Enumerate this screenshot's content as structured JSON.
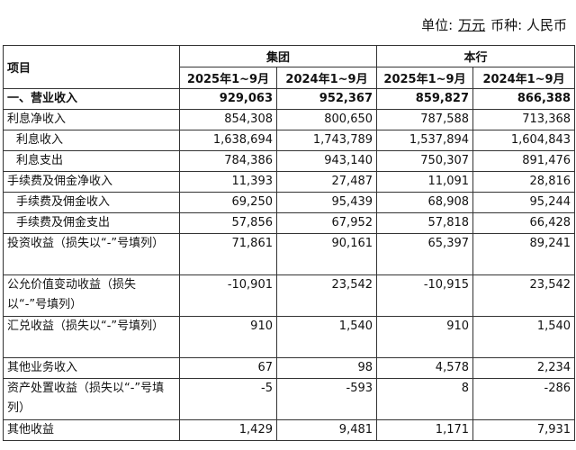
{
  "unit": {
    "label": "单位:",
    "value": "万元",
    "currency_label": "币种:",
    "currency": "人民币"
  },
  "header": {
    "item": "项目",
    "group": "集团",
    "bank": "本行",
    "periods": [
      "2025年1~9月",
      "2024年1~9月",
      "2025年1~9月",
      "2024年1~9月"
    ]
  },
  "rows": [
    {
      "label": "一、营业收入",
      "values": [
        "929,063",
        "952,367",
        "859,827",
        "866,388"
      ]
    },
    {
      "label": "利息净收入",
      "values": [
        "854,308",
        "800,650",
        "787,588",
        "713,368"
      ]
    },
    {
      "label": "利息收入",
      "values": [
        "1,638,694",
        "1,743,789",
        "1,537,894",
        "1,604,843"
      ]
    },
    {
      "label": "利息支出",
      "values": [
        "784,386",
        "943,140",
        "750,307",
        "891,476"
      ]
    },
    {
      "label": "手续费及佣金净收入",
      "values": [
        "11,393",
        "27,487",
        "11,091",
        "28,816"
      ]
    },
    {
      "label": "手续费及佣金收入",
      "values": [
        "69,250",
        "95,439",
        "68,908",
        "95,244"
      ]
    },
    {
      "label": "手续费及佣金支出",
      "values": [
        "57,856",
        "67,952",
        "57,818",
        "66,428"
      ]
    },
    {
      "label": "投资收益（损失以“-”号填列）",
      "values": [
        "71,861",
        "90,161",
        "65,397",
        "89,241"
      ]
    },
    {
      "label": "公允价值变动收益（损失以“-”号填列）",
      "values": [
        "-10,901",
        "23,542",
        "-10,915",
        "23,542"
      ]
    },
    {
      "label": "汇兑收益（损失以“-”号填列）",
      "values": [
        "910",
        "1,540",
        "910",
        "1,540"
      ]
    },
    {
      "label": "其他业务收入",
      "values": [
        "67",
        "98",
        "4,578",
        "2,234"
      ]
    },
    {
      "label": "资产处置收益（损失以“-”号填列）",
      "values": [
        "-5",
        "-593",
        "8",
        "-286"
      ]
    },
    {
      "label": "其他收益",
      "values": [
        "1,429",
        "9,481",
        "1,171",
        "7,931"
      ]
    }
  ]
}
